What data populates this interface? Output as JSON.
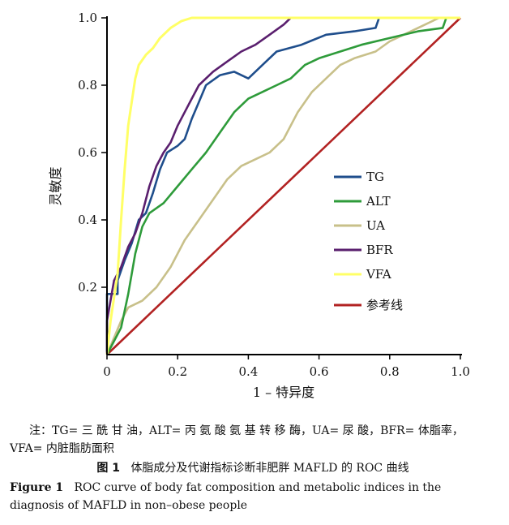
{
  "chart_data": {
    "type": "line",
    "xlabel": "1 – 特异度",
    "ylabel": "灵敏度",
    "xlim": [
      0,
      1
    ],
    "ylim": [
      0,
      1
    ],
    "x_ticks": [
      "0",
      "0.2",
      "0.4",
      "0.6",
      "0.8",
      "1.0"
    ],
    "y_ticks": [
      "0.2",
      "0.4",
      "0.6",
      "0.8",
      "1.0"
    ],
    "legend_position": "center-right",
    "series": [
      {
        "name": "TG",
        "color": "#1f4e8c",
        "points": [
          [
            0,
            0
          ],
          [
            0,
            0.18
          ],
          [
            0.03,
            0.18
          ],
          [
            0.03,
            0.22
          ],
          [
            0.05,
            0.28
          ],
          [
            0.07,
            0.33
          ],
          [
            0.09,
            0.4
          ],
          [
            0.11,
            0.42
          ],
          [
            0.13,
            0.48
          ],
          [
            0.15,
            0.55
          ],
          [
            0.17,
            0.6
          ],
          [
            0.2,
            0.62
          ],
          [
            0.22,
            0.64
          ],
          [
            0.24,
            0.7
          ],
          [
            0.26,
            0.75
          ],
          [
            0.28,
            0.8
          ],
          [
            0.32,
            0.83
          ],
          [
            0.36,
            0.84
          ],
          [
            0.4,
            0.82
          ],
          [
            0.44,
            0.86
          ],
          [
            0.48,
            0.9
          ],
          [
            0.55,
            0.92
          ],
          [
            0.62,
            0.95
          ],
          [
            0.7,
            0.96
          ],
          [
            0.76,
            0.97
          ],
          [
            0.77,
            1.0
          ],
          [
            1,
            1
          ]
        ]
      },
      {
        "name": "ALT",
        "color": "#2e9b3a",
        "points": [
          [
            0,
            0
          ],
          [
            0.02,
            0.04
          ],
          [
            0.04,
            0.08
          ],
          [
            0.06,
            0.18
          ],
          [
            0.08,
            0.3
          ],
          [
            0.1,
            0.38
          ],
          [
            0.12,
            0.42
          ],
          [
            0.16,
            0.45
          ],
          [
            0.2,
            0.5
          ],
          [
            0.24,
            0.55
          ],
          [
            0.28,
            0.6
          ],
          [
            0.32,
            0.66
          ],
          [
            0.36,
            0.72
          ],
          [
            0.4,
            0.76
          ],
          [
            0.44,
            0.78
          ],
          [
            0.48,
            0.8
          ],
          [
            0.52,
            0.82
          ],
          [
            0.56,
            0.86
          ],
          [
            0.6,
            0.88
          ],
          [
            0.66,
            0.9
          ],
          [
            0.72,
            0.92
          ],
          [
            0.8,
            0.94
          ],
          [
            0.88,
            0.96
          ],
          [
            0.95,
            0.97
          ],
          [
            0.96,
            1.0
          ],
          [
            1,
            1
          ]
        ]
      },
      {
        "name": "UA",
        "color": "#c8c08a",
        "points": [
          [
            0,
            0
          ],
          [
            0.02,
            0.05
          ],
          [
            0.04,
            0.1
          ],
          [
            0.06,
            0.14
          ],
          [
            0.1,
            0.16
          ],
          [
            0.14,
            0.2
          ],
          [
            0.18,
            0.26
          ],
          [
            0.22,
            0.34
          ],
          [
            0.26,
            0.4
          ],
          [
            0.3,
            0.46
          ],
          [
            0.34,
            0.52
          ],
          [
            0.38,
            0.56
          ],
          [
            0.42,
            0.58
          ],
          [
            0.46,
            0.6
          ],
          [
            0.5,
            0.64
          ],
          [
            0.54,
            0.72
          ],
          [
            0.58,
            0.78
          ],
          [
            0.62,
            0.82
          ],
          [
            0.66,
            0.86
          ],
          [
            0.7,
            0.88
          ],
          [
            0.76,
            0.9
          ],
          [
            0.8,
            0.93
          ],
          [
            0.86,
            0.96
          ],
          [
            0.9,
            0.98
          ],
          [
            0.94,
            1.0
          ],
          [
            1,
            1
          ]
        ]
      },
      {
        "name": "BFR",
        "color": "#5a1f6e",
        "points": [
          [
            0,
            0
          ],
          [
            0,
            0.1
          ],
          [
            0.02,
            0.22
          ],
          [
            0.04,
            0.26
          ],
          [
            0.06,
            0.32
          ],
          [
            0.08,
            0.36
          ],
          [
            0.1,
            0.42
          ],
          [
            0.12,
            0.5
          ],
          [
            0.14,
            0.56
          ],
          [
            0.16,
            0.6
          ],
          [
            0.18,
            0.63
          ],
          [
            0.2,
            0.68
          ],
          [
            0.22,
            0.72
          ],
          [
            0.24,
            0.76
          ],
          [
            0.26,
            0.8
          ],
          [
            0.3,
            0.84
          ],
          [
            0.34,
            0.87
          ],
          [
            0.38,
            0.9
          ],
          [
            0.42,
            0.92
          ],
          [
            0.46,
            0.95
          ],
          [
            0.5,
            0.98
          ],
          [
            0.52,
            1.0
          ],
          [
            1,
            1
          ]
        ]
      },
      {
        "name": "VFA",
        "color": "#ffff66",
        "points": [
          [
            0,
            0
          ],
          [
            0.01,
            0.1
          ],
          [
            0.03,
            0.24
          ],
          [
            0.04,
            0.4
          ],
          [
            0.05,
            0.55
          ],
          [
            0.06,
            0.68
          ],
          [
            0.07,
            0.75
          ],
          [
            0.08,
            0.82
          ],
          [
            0.09,
            0.86
          ],
          [
            0.11,
            0.89
          ],
          [
            0.13,
            0.91
          ],
          [
            0.15,
            0.94
          ],
          [
            0.18,
            0.97
          ],
          [
            0.21,
            0.99
          ],
          [
            0.24,
            1.0
          ],
          [
            1,
            1
          ]
        ]
      },
      {
        "name": "参考线",
        "color": "#b22222",
        "points": [
          [
            0,
            0
          ],
          [
            1,
            1
          ]
        ]
      }
    ]
  },
  "note_text": "注：TG= 三 酰 甘 油，ALT= 丙 氨 酸 氨 基 转 移 酶，UA= 尿 酸，BFR= 体脂率，VFA= 内脏脂肪面积",
  "figure": {
    "label_zh": "图 1",
    "title_zh": "体脂成分及代谢指标诊断非肥胖 MAFLD 的 ROC 曲线",
    "label_en": "Figure 1",
    "title_en": "ROC curve of body fat composition and metabolic indices in the diagnosis of MAFLD in non–obese people"
  }
}
